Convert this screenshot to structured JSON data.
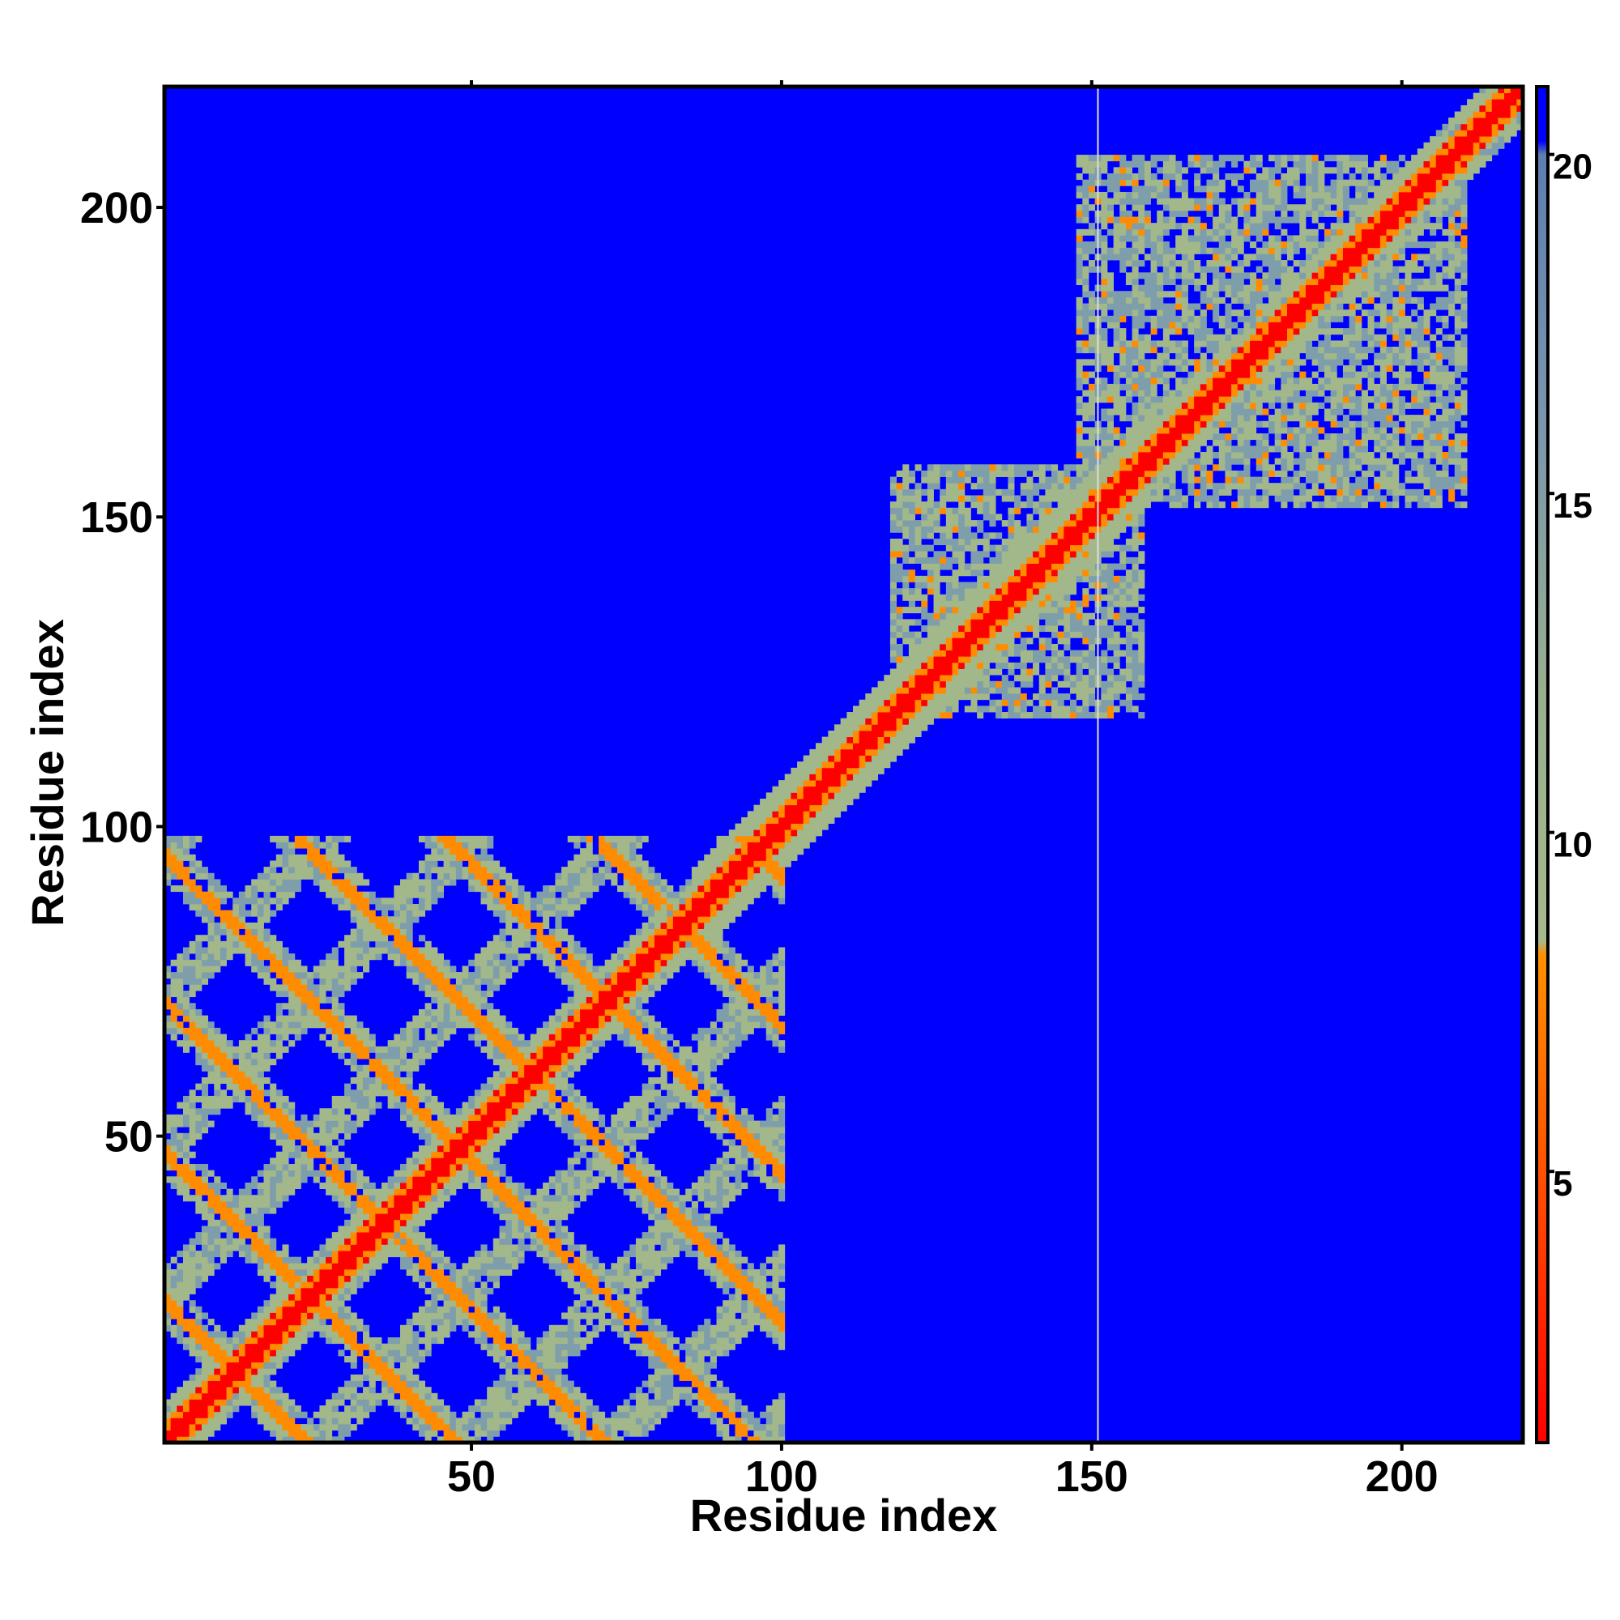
{
  "chart_data": {
    "type": "heatmap",
    "title": "",
    "xlabel": "Residue index",
    "ylabel": "Residue index",
    "xlim": [
      0.5,
      219.5
    ],
    "ylim": [
      0.5,
      219.5
    ],
    "x_ticks": [
      50,
      100,
      150,
      200
    ],
    "x_tick_labels": [
      "50",
      "100",
      "150",
      "200"
    ],
    "y_ticks": [
      50,
      100,
      150,
      200
    ],
    "y_tick_labels": [
      "50",
      "100",
      "150",
      "200"
    ],
    "n_residues": 219,
    "color_scale": {
      "min": 1,
      "max": 21,
      "ticks": [
        5,
        10,
        15,
        20
      ],
      "tick_labels": [
        "5",
        "10",
        "15",
        "20"
      ],
      "colors": [
        "#ff0000",
        "#ff8c00",
        "#9fb58a",
        "#6688aa",
        "#0000ff"
      ]
    },
    "description_of_values": "pairwise residue distance map; low values along the diagonal, a periodic lattice of contacts for residues 1-100, and compact blocks around residues 120-160 and 160-210",
    "regions": {
      "diagonal_band": {
        "from": 1,
        "to": 219,
        "value": 1.5
      },
      "block_1": {
        "x": [
          1,
          100
        ],
        "y": [
          1,
          98
        ],
        "value": 11
      },
      "block_2": {
        "x": [
          120,
          158
        ],
        "y": [
          118,
          157
        ],
        "value": 11
      },
      "block_3": {
        "x": [
          148,
          208
        ],
        "y": [
          152,
          205
        ],
        "value": 11
      }
    },
    "grid": false,
    "legend": "colorbar-right",
    "vertical_line_x": 151
  }
}
